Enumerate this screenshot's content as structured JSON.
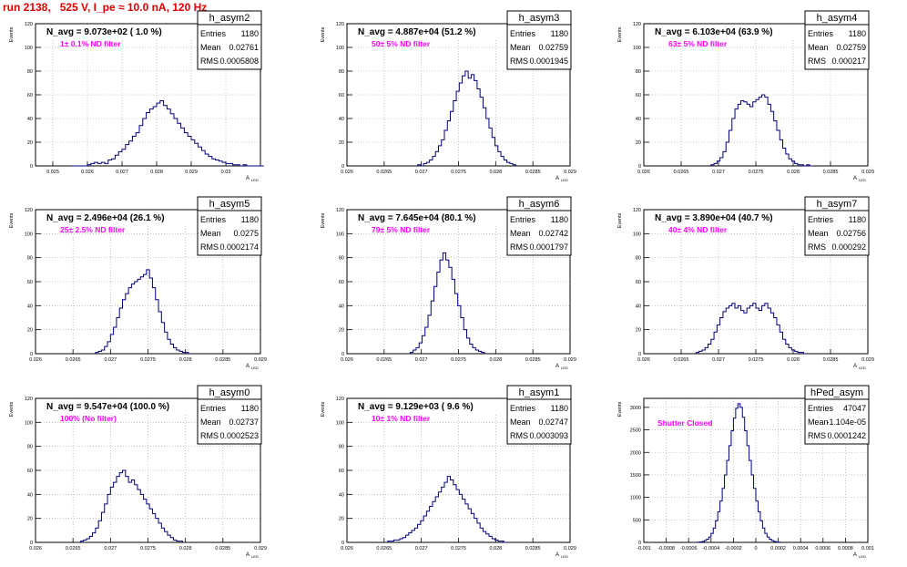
{
  "run_title": "run 2138,   525 V, I_pe ≈ 10.0 nA, 120 Hz",
  "colors": {
    "histogram": "#000080",
    "annotation": "#ff00ff",
    "title": "#e00000",
    "grid": "#a0a0a0"
  },
  "axis_labels": {
    "ylabel": "Events",
    "xlabel": "A",
    "xlabel_sub": "LED"
  },
  "stat_labels": {
    "entries": "Entries",
    "mean": "Mean",
    "rms": "RMS"
  },
  "chart_data": [
    {
      "type": "bar",
      "name": "h_asym2",
      "header": "N_avg = 9.073e+02 ( 1.0 %)",
      "note": "1± 0.1% ND filter",
      "stats": {
        "entries": "1180",
        "mean": "0.02761",
        "rms": "0.0005808"
      },
      "xlim": [
        0.0245,
        0.031
      ],
      "ylim": [
        0,
        120
      ],
      "xticks": [
        0.025,
        0.026,
        0.027,
        0.028,
        0.029,
        0.03
      ],
      "xtick_labels": [
        "0.025",
        "0.026",
        "0.027",
        "0.028",
        "0.029",
        "0.03"
      ],
      "yticks": [
        0,
        20,
        40,
        60,
        80,
        100,
        120
      ],
      "ytick_labels": [
        "0",
        "20",
        "40",
        "60",
        "80",
        "100",
        "120"
      ],
      "bins": {
        "start": 0.0255,
        "width": 0.0001,
        "values": [
          0,
          0,
          0,
          0,
          0,
          1,
          2,
          3,
          2,
          3,
          2,
          5,
          6,
          9,
          12,
          14,
          18,
          21,
          25,
          28,
          34,
          40,
          45,
          48,
          50,
          53,
          55,
          51,
          48,
          44,
          40,
          36,
          32,
          28,
          25,
          22,
          19,
          16,
          13,
          10,
          8,
          6,
          5,
          4,
          3,
          2,
          2,
          1,
          1,
          0,
          1,
          0,
          0,
          0,
          0,
          0
        ]
      }
    },
    {
      "type": "bar",
      "name": "h_asym3",
      "header": "N_avg = 4.887e+04 (51.2 %)",
      "note": "50± 5% ND filter",
      "stats": {
        "entries": "1180",
        "mean": "0.02759",
        "rms": "0.0001945"
      },
      "xlim": [
        0.026,
        0.029
      ],
      "ylim": [
        0,
        120
      ],
      "xticks": [
        0.026,
        0.0265,
        0.027,
        0.0275,
        0.028,
        0.0285,
        0.029
      ],
      "xtick_labels": [
        "0.026",
        "0.0265",
        "0.027",
        "0.0275",
        "0.028",
        "0.0285",
        "0.029"
      ],
      "yticks": [
        0,
        20,
        40,
        60,
        80,
        100,
        120
      ],
      "ytick_labels": [
        "0",
        "20",
        "40",
        "60",
        "80",
        "100",
        "120"
      ],
      "bins": {
        "start": 0.02695,
        "width": 4e-05,
        "values": [
          1,
          0,
          2,
          3,
          5,
          8,
          12,
          17,
          22,
          30,
          38,
          46,
          55,
          63,
          70,
          76,
          80,
          74,
          77,
          72,
          65,
          58,
          49,
          40,
          32,
          24,
          17,
          12,
          8,
          5,
          3,
          2,
          1
        ]
      }
    },
    {
      "type": "bar",
      "name": "h_asym4",
      "header": "N_avg = 6.103e+04 (63.9 %)",
      "note": "63± 5% ND filter",
      "stats": {
        "entries": "1180",
        "mean": "0.02759",
        "rms": "0.000217"
      },
      "xlim": [
        0.026,
        0.029
      ],
      "ylim": [
        0,
        120
      ],
      "xticks": [
        0.026,
        0.0265,
        0.027,
        0.0275,
        0.028,
        0.0285,
        0.029
      ],
      "xtick_labels": [
        "0.026",
        "0.0265",
        "0.027",
        "0.0275",
        "0.028",
        "0.0285",
        "0.029"
      ],
      "yticks": [
        0,
        20,
        40,
        60,
        80,
        100,
        120
      ],
      "ytick_labels": [
        "0",
        "20",
        "40",
        "60",
        "80",
        "100",
        "120"
      ],
      "bins": {
        "start": 0.0269,
        "width": 4e-05,
        "values": [
          1,
          2,
          4,
          7,
          12,
          20,
          30,
          40,
          48,
          52,
          55,
          54,
          52,
          50,
          54,
          56,
          58,
          60,
          58,
          52,
          46,
          38,
          30,
          22,
          15,
          10,
          6,
          4,
          2,
          1,
          1,
          0,
          1,
          0
        ]
      }
    },
    {
      "type": "bar",
      "name": "h_asym5",
      "header": "N_avg = 2.496e+04 (26.1 %)",
      "note": "25± 2.5% ND filter",
      "stats": {
        "entries": "1180",
        "mean": "0.0275",
        "rms": "0.0002174"
      },
      "xlim": [
        0.026,
        0.029
      ],
      "ylim": [
        0,
        120
      ],
      "xticks": [
        0.026,
        0.0265,
        0.027,
        0.0275,
        0.028,
        0.0285,
        0.029
      ],
      "xtick_labels": [
        "0.026",
        "0.0265",
        "0.027",
        "0.0275",
        "0.028",
        "0.0285",
        "0.029"
      ],
      "yticks": [
        0,
        20,
        40,
        60,
        80,
        100,
        120
      ],
      "ytick_labels": [
        "0",
        "20",
        "40",
        "60",
        "80",
        "100",
        "120"
      ],
      "bins": {
        "start": 0.0268,
        "width": 4e-05,
        "values": [
          1,
          2,
          3,
          6,
          10,
          16,
          22,
          30,
          38,
          45,
          50,
          55,
          58,
          60,
          62,
          64,
          66,
          70,
          63,
          55,
          45,
          35,
          26,
          18,
          12,
          8,
          5,
          3,
          2,
          1,
          1,
          0
        ]
      }
    },
    {
      "type": "bar",
      "name": "h_asym6",
      "header": "N_avg = 7.645e+04 (80.1 %)",
      "note": "79± 5% ND filter",
      "stats": {
        "entries": "1180",
        "mean": "0.02742",
        "rms": "0.0001797"
      },
      "xlim": [
        0.026,
        0.029
      ],
      "ylim": [
        0,
        120
      ],
      "xticks": [
        0.026,
        0.0265,
        0.027,
        0.0275,
        0.028,
        0.0285,
        0.029
      ],
      "xtick_labels": [
        "0.026",
        "0.0265",
        "0.027",
        "0.0275",
        "0.028",
        "0.0285",
        "0.029"
      ],
      "yticks": [
        0,
        20,
        40,
        60,
        80,
        100,
        120
      ],
      "ytick_labels": [
        "0",
        "20",
        "40",
        "60",
        "80",
        "100",
        "120"
      ],
      "bins": {
        "start": 0.02685,
        "width": 4e-05,
        "values": [
          1,
          3,
          5,
          9,
          15,
          22,
          32,
          44,
          56,
          68,
          78,
          84,
          78,
          72,
          62,
          50,
          40,
          30,
          20,
          13,
          8,
          5,
          3,
          2,
          1
        ]
      }
    },
    {
      "type": "bar",
      "name": "h_asym7",
      "header": "N_avg = 3.890e+04 (40.7 %)",
      "note": "40± 4% ND filter",
      "stats": {
        "entries": "1180",
        "mean": "0.02756",
        "rms": "0.000292"
      },
      "xlim": [
        0.026,
        0.029
      ],
      "ylim": [
        0,
        120
      ],
      "xticks": [
        0.026,
        0.0265,
        0.027,
        0.0275,
        0.028,
        0.0285,
        0.029
      ],
      "xtick_labels": [
        "0.026",
        "0.0265",
        "0.027",
        "0.0275",
        "0.028",
        "0.0285",
        "0.029"
      ],
      "yticks": [
        0,
        20,
        40,
        60,
        80,
        100,
        120
      ],
      "ytick_labels": [
        "0",
        "20",
        "40",
        "60",
        "80",
        "100",
        "120"
      ],
      "bins": {
        "start": 0.0267,
        "width": 4e-05,
        "values": [
          1,
          2,
          3,
          5,
          8,
          12,
          18,
          24,
          30,
          35,
          38,
          40,
          42,
          38,
          40,
          36,
          34,
          38,
          40,
          42,
          38,
          36,
          40,
          42,
          38,
          34,
          30,
          24,
          18,
          12,
          8,
          5,
          3,
          2,
          1,
          1,
          0
        ]
      }
    },
    {
      "type": "bar",
      "name": "h_asym0",
      "header": "N_avg = 9.547e+04 (100.0 %)",
      "note": "100% (No filter)",
      "stats": {
        "entries": "1180",
        "mean": "0.02737",
        "rms": "0.0002523"
      },
      "xlim": [
        0.026,
        0.029
      ],
      "ylim": [
        0,
        120
      ],
      "xticks": [
        0.026,
        0.0265,
        0.027,
        0.0275,
        0.028,
        0.0285,
        0.029
      ],
      "xtick_labels": [
        "0.026",
        "0.0265",
        "0.027",
        "0.0275",
        "0.028",
        "0.0285",
        "0.029"
      ],
      "yticks": [
        0,
        20,
        40,
        60,
        80,
        100,
        120
      ],
      "ytick_labels": [
        "0",
        "20",
        "40",
        "60",
        "80",
        "100",
        "120"
      ],
      "bins": {
        "start": 0.0266,
        "width": 4e-05,
        "values": [
          1,
          2,
          3,
          5,
          8,
          12,
          18,
          25,
          32,
          40,
          46,
          50,
          55,
          58,
          60,
          55,
          50,
          52,
          48,
          44,
          40,
          36,
          32,
          28,
          24,
          20,
          16,
          12,
          9,
          6,
          4,
          2,
          1,
          1
        ]
      }
    },
    {
      "type": "bar",
      "name": "h_asym1",
      "header": "N_avg = 9.129e+03 ( 9.6 %)",
      "note": "10± 1% ND filter",
      "stats": {
        "entries": "1180",
        "mean": "0.02747",
        "rms": "0.0003093"
      },
      "xlim": [
        0.026,
        0.029
      ],
      "ylim": [
        0,
        120
      ],
      "xticks": [
        0.026,
        0.0265,
        0.027,
        0.0275,
        0.028,
        0.0285,
        0.029
      ],
      "xtick_labels": [
        "0.026",
        "0.0265",
        "0.027",
        "0.0275",
        "0.028",
        "0.0285",
        "0.029"
      ],
      "yticks": [
        0,
        20,
        40,
        60,
        80,
        100,
        120
      ],
      "ytick_labels": [
        "0",
        "20",
        "40",
        "60",
        "80",
        "100",
        "120"
      ],
      "bins": {
        "start": 0.02655,
        "width": 4e-05,
        "values": [
          1,
          1,
          2,
          2,
          3,
          4,
          6,
          8,
          10,
          12,
          15,
          18,
          22,
          26,
          30,
          34,
          38,
          42,
          46,
          50,
          55,
          52,
          48,
          44,
          40,
          36,
          32,
          28,
          24,
          20,
          16,
          12,
          9,
          7,
          5,
          3,
          2,
          1,
          1,
          0
        ]
      }
    },
    {
      "type": "bar",
      "name": "hPed_asym",
      "header": "",
      "note": "Shutter Closed",
      "stats": {
        "entries": "47047",
        "mean": "-1.104e-05",
        "rms": "0.0001242"
      },
      "xlim": [
        -0.001,
        0.001
      ],
      "ylim": [
        0,
        3200
      ],
      "xticks": [
        -0.001,
        -0.0008,
        -0.0006,
        -0.0004,
        -0.0002,
        0,
        0.0002,
        0.0004,
        0.0006,
        0.0008,
        0.001
      ],
      "xtick_labels": [
        "-0.001",
        "-0.0008",
        "-0.0006",
        "-0.0004",
        "-0.0002",
        "0",
        "0.0002",
        "0.0004",
        "0.0006",
        "0.0008",
        "0.001"
      ],
      "yticks": [
        0,
        500,
        1000,
        1500,
        2000,
        2500,
        3000
      ],
      "ytick_labels": [
        "0",
        "500",
        "1000",
        "1500",
        "2000",
        "2500",
        "3000"
      ],
      "bins": {
        "start": -0.00052,
        "width": 2e-05,
        "values": [
          5,
          10,
          20,
          40,
          70,
          120,
          200,
          320,
          480,
          680,
          920,
          1200,
          1500,
          1820,
          2150,
          2480,
          2760,
          2980,
          3080,
          3000,
          2780,
          2480,
          2150,
          1820,
          1500,
          1200,
          920,
          680,
          480,
          320,
          200,
          120,
          70,
          40,
          20,
          10,
          5
        ]
      }
    }
  ]
}
